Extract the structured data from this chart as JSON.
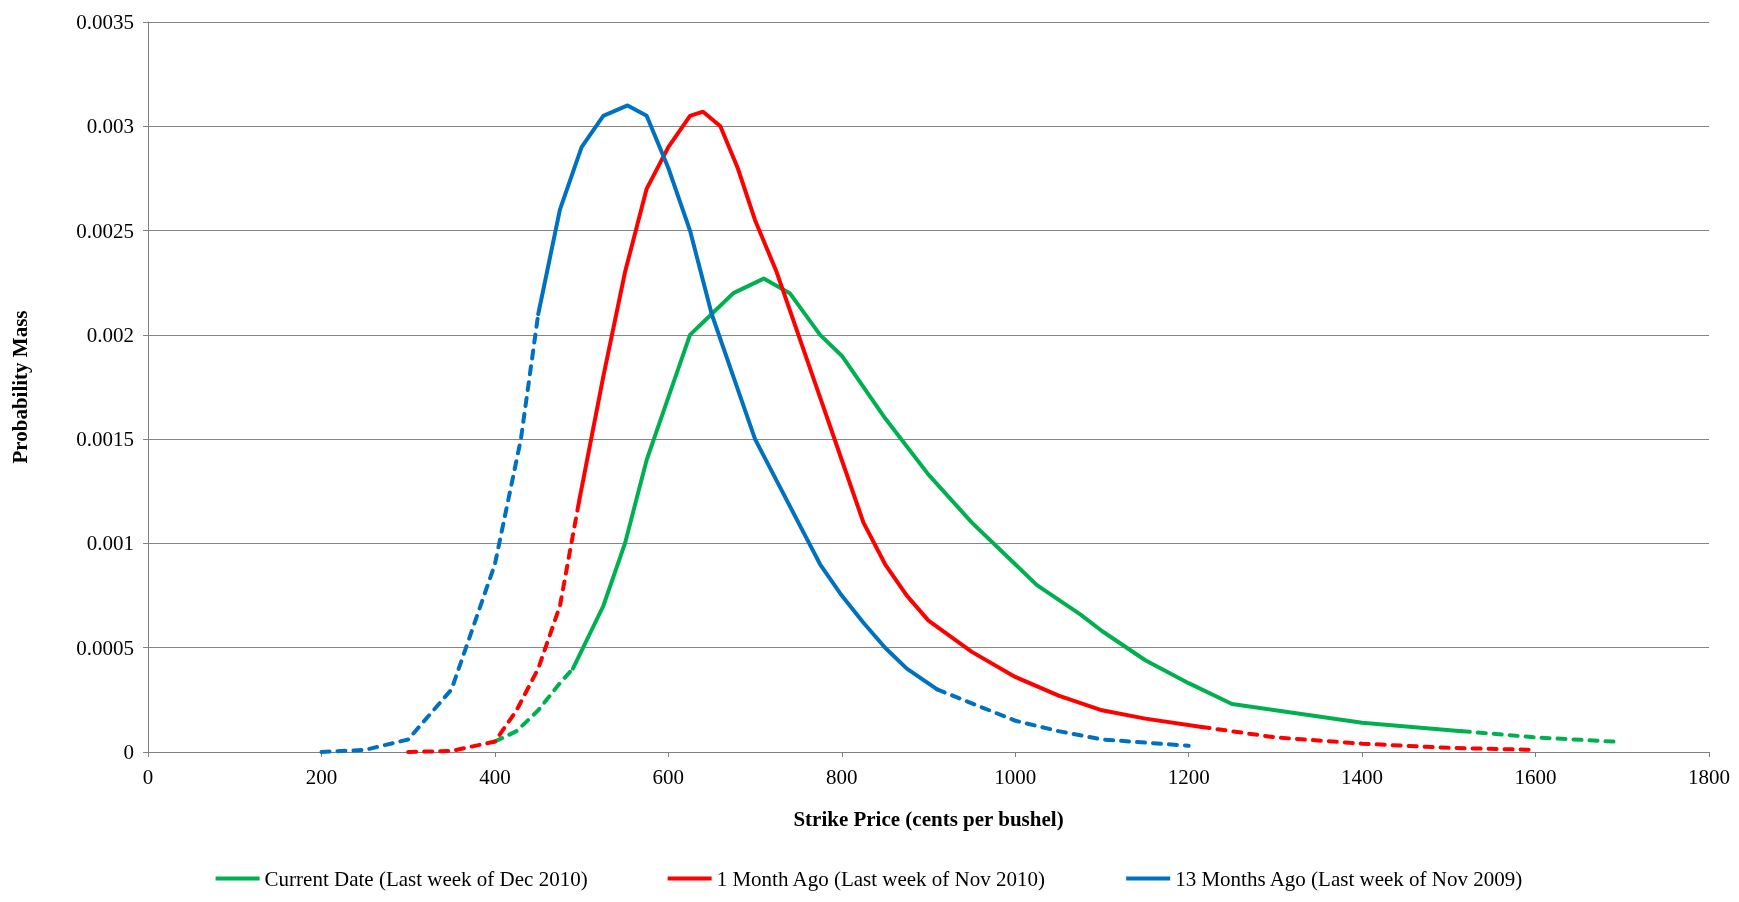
{
  "chart_data": {
    "type": "line",
    "xlabel": "Strike Price (cents per bushel)",
    "ylabel": "Probability Mass",
    "xlim": [
      0,
      1800
    ],
    "xticks": [
      0,
      200,
      400,
      600,
      800,
      1000,
      1200,
      1400,
      1600,
      1800
    ],
    "ylim": [
      0,
      0.0035
    ],
    "yticks": [
      0,
      0.0005,
      0.001,
      0.0015,
      0.002,
      0.0025,
      0.003,
      0.0035
    ],
    "grid": "y",
    "legend": "bottom",
    "marker": "none",
    "series": [
      {
        "name": "Current Date (Last week of Dec 2010)",
        "color": "#00b050",
        "line_style": "solid",
        "x": [
          490,
          525,
          550,
          575,
          600,
          625,
          650,
          675,
          710,
          740,
          775,
          800,
          850,
          900,
          950,
          1000,
          1025,
          1075,
          1100,
          1150,
          1200,
          1250,
          1300,
          1400,
          1515
        ],
        "values": [
          0.0004,
          0.0007,
          0.001,
          0.0014,
          0.0017,
          0.002,
          0.0021,
          0.0022,
          0.00227,
          0.0022,
          0.002,
          0.0019,
          0.0016,
          0.00133,
          0.0011,
          0.0009,
          0.0008,
          0.00066,
          0.00058,
          0.00044,
          0.00033,
          0.00023,
          0.0002,
          0.00014,
          0.0001
        ]
      },
      {
        "name": "1 Month Ago (Last week of Nov 2010)",
        "color": "#ff0000",
        "line_style": "solid",
        "x": [
          497,
          525,
          550,
          575,
          600,
          625,
          640,
          660,
          680,
          700,
          725,
          750,
          775,
          800,
          825,
          850,
          875,
          900,
          950,
          1000,
          1050,
          1100,
          1150,
          1215
        ],
        "values": [
          0.0012,
          0.0018,
          0.0023,
          0.0027,
          0.0029,
          0.00305,
          0.00307,
          0.003,
          0.0028,
          0.00255,
          0.0023,
          0.002,
          0.0017,
          0.0014,
          0.0011,
          0.0009,
          0.00075,
          0.00063,
          0.00048,
          0.00036,
          0.00027,
          0.0002,
          0.00016,
          0.00012
        ]
      },
      {
        "name": "13 Months Ago (Last week of Nov 2009)",
        "color": "#0070c0",
        "line_style": "solid",
        "x": [
          450,
          475,
          500,
          525,
          553,
          575,
          600,
          625,
          650,
          675,
          700,
          725,
          750,
          775,
          800,
          825,
          850,
          875,
          910
        ],
        "values": [
          0.0021,
          0.0026,
          0.0029,
          0.00305,
          0.0031,
          0.00305,
          0.0028,
          0.0025,
          0.0021,
          0.0018,
          0.0015,
          0.0013,
          0.0011,
          0.0009,
          0.00075,
          0.00062,
          0.0005,
          0.0004,
          0.0003
        ]
      },
      {
        "color": "#00b050",
        "line_style": "dashed",
        "x": [
          400,
          425,
          450,
          475,
          490
        ],
        "values": [
          5e-05,
          0.0001,
          0.0002,
          0.00033,
          0.0004
        ]
      },
      {
        "color": "#00b050",
        "line_style": "dashed",
        "x": [
          1515,
          1600,
          1690
        ],
        "values": [
          0.0001,
          7e-05,
          5e-05
        ]
      },
      {
        "color": "#ff0000",
        "line_style": "dashed",
        "x": [
          300,
          350,
          400,
          425,
          450,
          475,
          497
        ],
        "values": [
          0,
          5e-06,
          5e-05,
          0.0002,
          0.0004,
          0.0007,
          0.0012
        ]
      },
      {
        "color": "#ff0000",
        "line_style": "dashed",
        "x": [
          1215,
          1300,
          1400,
          1500,
          1600
        ],
        "values": [
          0.00012,
          7e-05,
          4e-05,
          2e-05,
          1e-05
        ]
      },
      {
        "color": "#0070c0",
        "line_style": "dashed",
        "x": [
          200,
          250,
          300,
          350,
          400,
          430,
          450
        ],
        "values": [
          0,
          1e-05,
          6e-05,
          0.0003,
          0.0009,
          0.0015,
          0.0021
        ]
      },
      {
        "color": "#0070c0",
        "line_style": "dashed",
        "x": [
          910,
          1000,
          1050,
          1100,
          1200
        ],
        "values": [
          0.0003,
          0.00015,
          0.0001,
          6e-05,
          3e-05
        ]
      }
    ]
  }
}
